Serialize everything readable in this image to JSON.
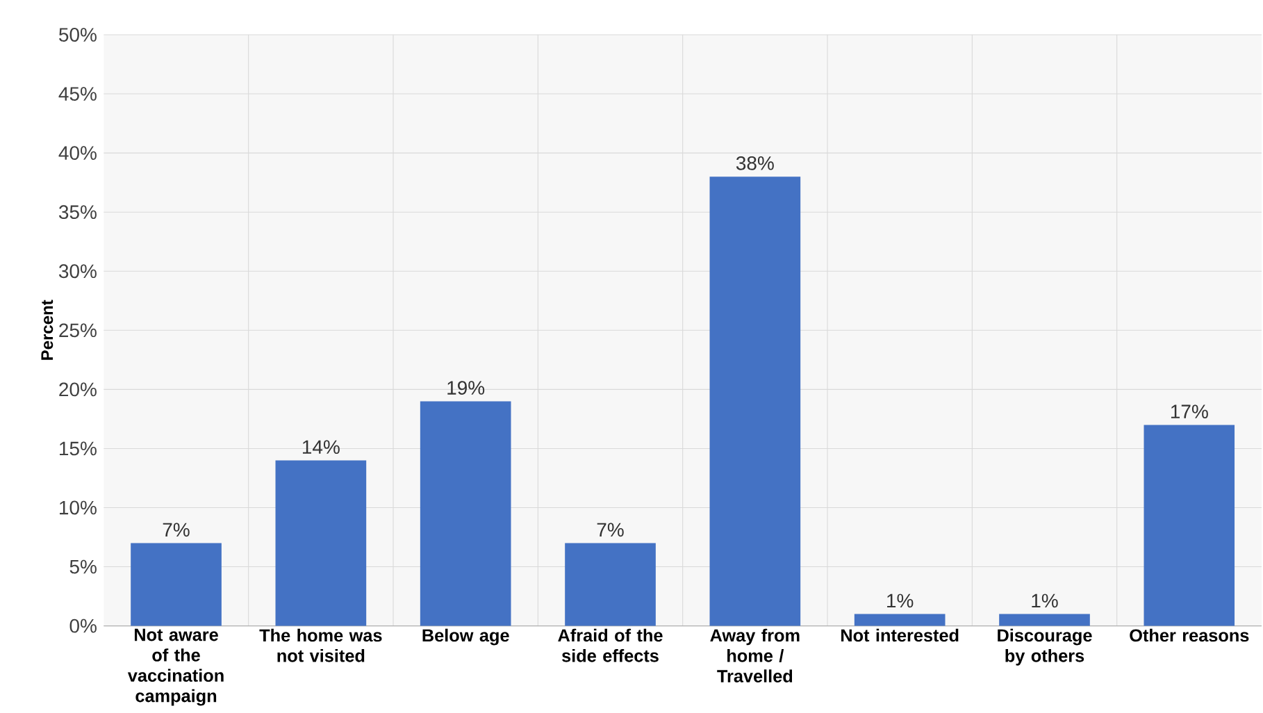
{
  "chart_data": {
    "type": "bar",
    "ylabel": "Percent",
    "categories": [
      "Not aware of the vaccination campaign",
      "The home was not visited",
      "Below age",
      "Afraid of the side effects",
      "Away from home / Travelled",
      "Not interested",
      "Discourage by others",
      "Other reasons"
    ],
    "values": [
      7,
      14,
      19,
      7,
      38,
      1,
      1,
      17
    ],
    "value_labels": [
      "7%",
      "14%",
      "19%",
      "7%",
      "38%",
      "1%",
      "1%",
      "17%"
    ],
    "color": "#4472c4",
    "ylim": [
      0,
      50
    ],
    "yticks": [
      {
        "value": 0,
        "label": "0%"
      },
      {
        "value": 5,
        "label": "5%"
      },
      {
        "value": 10,
        "label": "10%"
      },
      {
        "value": 15,
        "label": "15%"
      },
      {
        "value": 20,
        "label": "20%"
      },
      {
        "value": 25,
        "label": "25%"
      },
      {
        "value": 30,
        "label": "30%"
      },
      {
        "value": 35,
        "label": "35%"
      },
      {
        "value": 40,
        "label": "40%"
      },
      {
        "value": 45,
        "label": "45%"
      },
      {
        "value": 50,
        "label": "50%"
      }
    ],
    "grid": true
  }
}
